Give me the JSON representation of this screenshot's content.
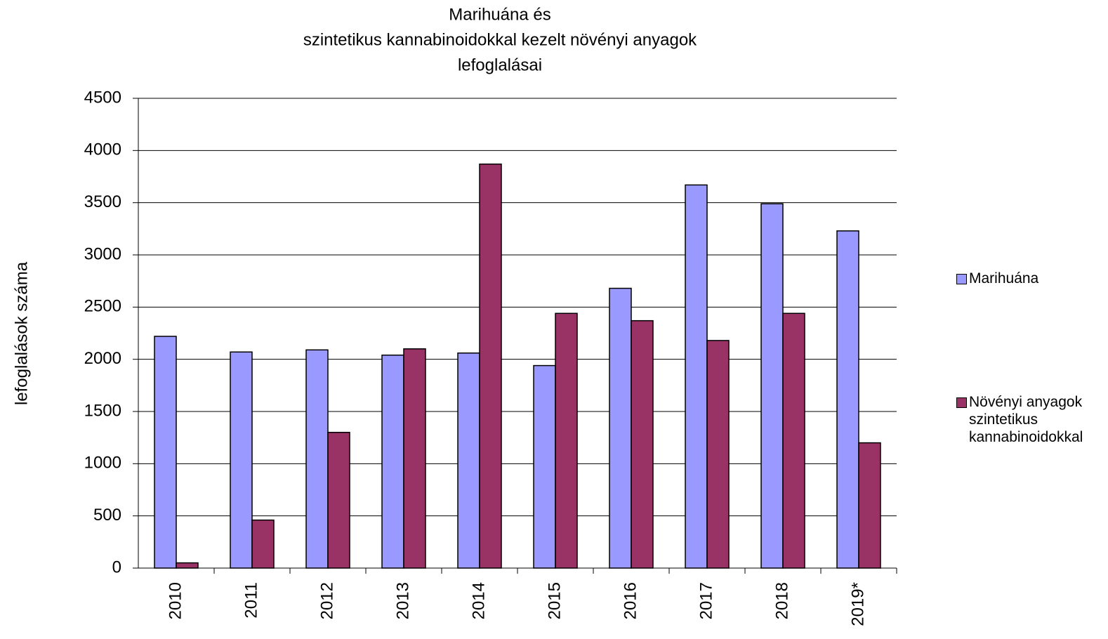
{
  "chart_data": {
    "type": "bar",
    "title": [
      "Marihuána és",
      "szintetikus kannabinoidokkal kezelt növényi anyagok",
      "lefoglalásai"
    ],
    "y_label": "lefoglalások száma",
    "categories": [
      "2010",
      "2011",
      "2012",
      "2013",
      "2014",
      "2015",
      "2016",
      "2017",
      "2018",
      "2019*"
    ],
    "series": [
      {
        "name": "Marihuána",
        "color": "#9999ff",
        "values": [
          2220,
          2070,
          2090,
          2040,
          2060,
          1940,
          2680,
          3670,
          3490,
          3230
        ]
      },
      {
        "name": "Növényi anyagok szintetikus kannabinoidokkal",
        "color": "#993366",
        "values": [
          50,
          460,
          1300,
          2100,
          3870,
          2440,
          2370,
          2180,
          2440,
          1200
        ]
      }
    ],
    "ylim": [
      0,
      4500
    ],
    "yticks": [
      0,
      500,
      1000,
      1500,
      2000,
      2500,
      3000,
      3500,
      4000,
      4500
    ],
    "grid": true,
    "legend": "right"
  }
}
